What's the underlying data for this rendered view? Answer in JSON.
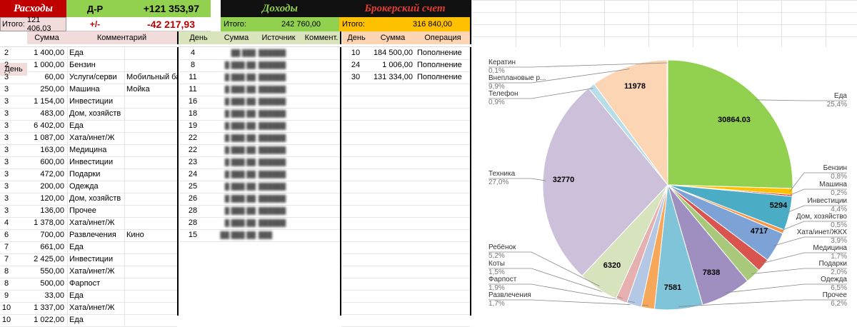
{
  "header": {
    "expenses_title": "Расходы",
    "dr_label": "Д-Р",
    "dr_value": "+121 353,97",
    "plusminus_label": "+/-",
    "plusminus_value": "-42 217,93",
    "income_title": "Доходы",
    "broker_title": "Брокерский счет",
    "expenses_total_label": "Итого:",
    "expenses_total_value": "121 406,03",
    "income_total_label": "Итого:",
    "income_total_value": "242 760,00",
    "broker_total_label": "Итого:",
    "broker_total_value": "316 840,00"
  },
  "colors": {
    "red_header": "#c00000",
    "green_header": "#92d050",
    "orange_header": "#ffc000",
    "income_title_color": "#375623",
    "pink_total": "#f2dcdb",
    "green_total": "#d8e4bc",
    "orange_total": "#fcd5b4"
  },
  "expenses": {
    "columns": [
      "День",
      "Сумма",
      "Комментарий"
    ],
    "rows": [
      {
        "day": "2",
        "sum": "1 400,00",
        "cat": "Еда",
        "note": ""
      },
      {
        "day": "2",
        "sum": "1 000,00",
        "cat": "Бензин",
        "note": ""
      },
      {
        "day": "3",
        "sum": "60,00",
        "cat": "Услуги/серви",
        "note": "Мобильный бан"
      },
      {
        "day": "3",
        "sum": "250,00",
        "cat": "Машина",
        "note": "Мойка"
      },
      {
        "day": "3",
        "sum": "1 154,00",
        "cat": "Инвестиции",
        "note": ""
      },
      {
        "day": "3",
        "sum": "483,00",
        "cat": "Дом, хозяйств",
        "note": ""
      },
      {
        "day": "3",
        "sum": "6 402,00",
        "cat": "Еда",
        "note": ""
      },
      {
        "day": "3",
        "sum": "1 087,00",
        "cat": "Хата/инет/Ж",
        "note": ""
      },
      {
        "day": "3",
        "sum": "163,00",
        "cat": "Медицина",
        "note": ""
      },
      {
        "day": "3",
        "sum": "600,00",
        "cat": "Инвестиции",
        "note": ""
      },
      {
        "day": "3",
        "sum": "472,00",
        "cat": "Подарки",
        "note": ""
      },
      {
        "day": "3",
        "sum": "200,00",
        "cat": "Одежда",
        "note": ""
      },
      {
        "day": "3",
        "sum": "120,00",
        "cat": "Дом, хозяйств",
        "note": ""
      },
      {
        "day": "3",
        "sum": "136,00",
        "cat": "Прочее",
        "note": ""
      },
      {
        "day": "4",
        "sum": "1 378,00",
        "cat": "Хата/инет/Ж",
        "note": ""
      },
      {
        "day": "6",
        "sum": "700,00",
        "cat": "Развлечения",
        "note": "Кино"
      },
      {
        "day": "7",
        "sum": "661,00",
        "cat": "Еда",
        "note": ""
      },
      {
        "day": "7",
        "sum": "2 425,00",
        "cat": "Инвестиции",
        "note": ""
      },
      {
        "day": "8",
        "sum": "550,00",
        "cat": "Хата/инет/Ж",
        "note": ""
      },
      {
        "day": "8",
        "sum": "500,00",
        "cat": "Фарпост",
        "note": ""
      },
      {
        "day": "9",
        "sum": "33,00",
        "cat": "Еда",
        "note": ""
      },
      {
        "day": "10",
        "sum": "1 337,00",
        "cat": "Хата/инет/Ж",
        "note": ""
      },
      {
        "day": "10",
        "sum": "1 022,00",
        "cat": "Еда",
        "note": ""
      }
    ]
  },
  "income": {
    "columns": [
      "День",
      "Сумма",
      "Источник",
      "Коммент."
    ],
    "rows": [
      {
        "day": "4",
        "sum": "██ ███",
        "src": "██████"
      },
      {
        "day": "8",
        "sum": "█ ███ ██",
        "src": "██████"
      },
      {
        "day": "11",
        "sum": "█ ███ ██",
        "src": "██████"
      },
      {
        "day": "11",
        "sum": "█ ███ ██",
        "src": "██████"
      },
      {
        "day": "16",
        "sum": "█ ███ ██",
        "src": "██████"
      },
      {
        "day": "18",
        "sum": "█ ███ ██",
        "src": "██████"
      },
      {
        "day": "19",
        "sum": "█ ███ ██",
        "src": "██████"
      },
      {
        "day": "22",
        "sum": "█ ███ ██",
        "src": "██████"
      },
      {
        "day": "22",
        "sum": "█ ███ ██",
        "src": "██████"
      },
      {
        "day": "23",
        "sum": "█ ███ ██",
        "src": "██████"
      },
      {
        "day": "24",
        "sum": "█ ███ ██",
        "src": "██████"
      },
      {
        "day": "25",
        "sum": "█ ███ ██",
        "src": "██████"
      },
      {
        "day": "26",
        "sum": "█ ███ ██",
        "src": "██████"
      },
      {
        "day": "28",
        "sum": "█ ███ ██",
        "src": "██████"
      },
      {
        "day": "28",
        "sum": "█ ███ ██",
        "src": "██████"
      },
      {
        "day": "15",
        "sum": "██ ███ ██",
        "src": "███"
      }
    ]
  },
  "broker": {
    "columns": [
      "День",
      "Сумма",
      "Операция"
    ],
    "rows": [
      {
        "day": "10",
        "sum": "184 500,00",
        "op": "Пополнение"
      },
      {
        "day": "24",
        "sum": "1 006,00",
        "op": "Пополнение"
      },
      {
        "day": "30",
        "sum": "131 334,00",
        "op": "Пополнение"
      }
    ]
  },
  "chart_data": {
    "type": "pie",
    "slices": [
      {
        "name": "Еда",
        "pct": 25.4,
        "pct_label": "25,4%",
        "value_label": "30864.03",
        "color": "#92d050"
      },
      {
        "name": "Бензин",
        "pct": 0.8,
        "pct_label": "0,8%",
        "value_label": "",
        "color": "#ffc000"
      },
      {
        "name": "Машина",
        "pct": 0.2,
        "pct_label": "0,2%",
        "value_label": "",
        "color": "#ff0000"
      },
      {
        "name": "Инвестиции",
        "pct": 4.4,
        "pct_label": "4,4%",
        "value_label": "5294",
        "color": "#4bacc6"
      },
      {
        "name": "Дом, хозяйство",
        "pct": 0.5,
        "pct_label": "0,5%",
        "value_label": "",
        "color": "#f79646"
      },
      {
        "name": "Хата/инет/ЖКХ",
        "pct": 3.9,
        "pct_label": "3,9%",
        "value_label": "4717",
        "color": "#7da3d6"
      },
      {
        "name": "Медицина",
        "pct": 1.7,
        "pct_label": "1,7%",
        "value_label": "",
        "color": "#d9534f"
      },
      {
        "name": "Подарки",
        "pct": 2.0,
        "pct_label": "2,0%",
        "value_label": "",
        "color": "#a9c97a"
      },
      {
        "name": "Одежда",
        "pct": 6.5,
        "pct_label": "6,5%",
        "value_label": "7838",
        "color": "#9f8fc0"
      },
      {
        "name": "Прочее",
        "pct": 6.2,
        "pct_label": "6,2%",
        "value_label": "7581",
        "color": "#7fc4d9"
      },
      {
        "name": "Развлечения",
        "pct": 1.7,
        "pct_label": "1,7%",
        "value_label": "",
        "color": "#f7a75a"
      },
      {
        "name": "Фарпост",
        "pct": 1.9,
        "pct_label": "1,9%",
        "value_label": "",
        "color": "#b4c8e6"
      },
      {
        "name": "Коты",
        "pct": 1.5,
        "pct_label": "1,5%",
        "value_label": "",
        "color": "#e6b0b0"
      },
      {
        "name": "Ребёнок",
        "pct": 5.2,
        "pct_label": "5,2%",
        "value_label": "6320",
        "color": "#d6e3bc"
      },
      {
        "name": "Техника",
        "pct": 27.0,
        "pct_label": "27,0%",
        "value_label": "32770",
        "color": "#ccc0da"
      },
      {
        "name": "Телефон",
        "pct": 0.9,
        "pct_label": "0,9%",
        "value_label": "",
        "color": "#b7dee8"
      },
      {
        "name": "Внеплановые р...",
        "pct": 9.9,
        "pct_label": "9,9%",
        "value_label": "11978",
        "color": "#fcd5b4"
      },
      {
        "name": "Кератин",
        "pct": 0.1,
        "pct_label": "0,1%",
        "value_label": "",
        "color": "#f2f2f2"
      }
    ]
  }
}
